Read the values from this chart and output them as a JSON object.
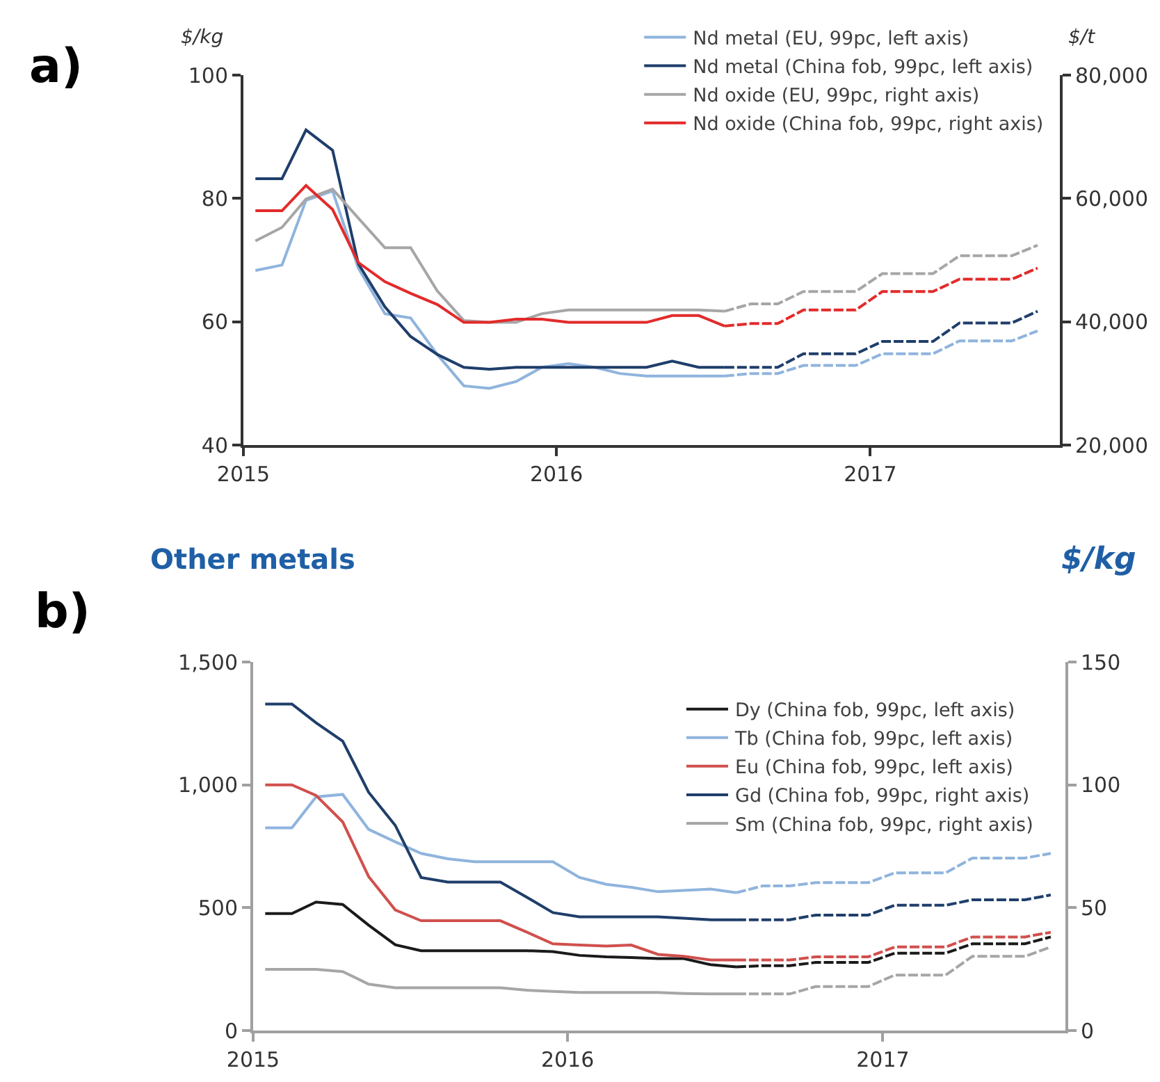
{
  "chart_data": [
    {
      "type": "line",
      "ylabel": "$/kg",
      "y2label": "$/t",
      "annotations": [
        "a)"
      ],
      "xlim": [
        "2015-01-01",
        "2017-08-10"
      ],
      "xticks": [
        {
          "value": "2015-01-01",
          "label": "2015"
        },
        {
          "value": "2016-01-01",
          "label": "2016"
        },
        {
          "value": "2017-01-01",
          "label": "2017"
        }
      ],
      "ylim": [
        40,
        100
      ],
      "yticks": [
        40,
        60,
        80,
        100
      ],
      "y2lim": [
        20000,
        80000
      ],
      "y2ticks": [
        {
          "value": 20000,
          "label": "20,000"
        },
        {
          "value": 40000,
          "label": "40,000"
        },
        {
          "value": 60000,
          "label": "60,000"
        },
        {
          "value": 80000,
          "label": "80,000"
        }
      ],
      "legend": "top right",
      "line_style": "solid",
      "series": [
        {
          "name": "Nd metal (EU, 99pc, left axis)",
          "color": "#8fb4dd",
          "x": [
            "2015-01-15",
            "2015-02-15",
            "2015-03-15",
            "2015-04-15",
            "2015-05-15",
            "2015-06-15",
            "2015-07-15",
            "2015-08-15",
            "2015-09-15",
            "2015-10-15",
            "2015-11-15",
            "2015-12-15",
            "2016-01-15",
            "2016-02-15",
            "2016-03-15",
            "2016-04-15",
            "2016-05-15",
            "2016-06-15",
            "2016-07-15"
          ],
          "values": [
            68.3,
            69.2,
            79.7,
            81.2,
            68.7,
            61.3,
            60.6,
            54.7,
            49.6,
            49.2,
            50.3,
            52.6,
            53.2,
            52.6,
            51.6,
            51.2,
            51.2,
            51.2,
            51.2
          ]
        },
        {
          "name": "Nd metal (China fob, 99pc, left axis)",
          "color": "#1f3e6b",
          "x": [
            "2015-01-15",
            "2015-02-15",
            "2015-03-15",
            "2015-04-15",
            "2015-05-15",
            "2015-06-15",
            "2015-07-15",
            "2015-08-15",
            "2015-09-15",
            "2015-10-15",
            "2015-11-15",
            "2015-12-15",
            "2016-01-15",
            "2016-02-15",
            "2016-03-15",
            "2016-04-15",
            "2016-05-15",
            "2016-06-15",
            "2016-07-15"
          ],
          "values": [
            83.2,
            83.2,
            91.1,
            87.8,
            69.4,
            62.4,
            57.6,
            54.7,
            52.6,
            52.3,
            52.6,
            52.6,
            52.6,
            52.6,
            52.6,
            52.6,
            53.6,
            52.6,
            52.6
          ]
        },
        {
          "name": "Nd oxide (EU, 99pc, right axis)",
          "color": "#a6a6a6",
          "axis": "y2",
          "x": [
            "2015-01-15",
            "2015-02-15",
            "2015-03-15",
            "2015-04-15",
            "2015-05-15",
            "2015-06-15",
            "2015-07-15",
            "2015-08-15",
            "2015-09-15",
            "2015-10-15",
            "2015-11-15",
            "2015-12-15",
            "2016-01-15",
            "2016-02-15",
            "2016-03-15",
            "2016-04-15",
            "2016-05-15",
            "2016-06-15",
            "2016-07-15"
          ],
          "values": [
            53100,
            55300,
            59900,
            61500,
            56800,
            52000,
            52000,
            45000,
            40200,
            39900,
            39900,
            41300,
            41900,
            41900,
            41900,
            41900,
            41900,
            41900,
            41700
          ]
        },
        {
          "name": "Nd oxide (China fob, 99pc, right axis)",
          "color": "#e32a2a",
          "axis": "y2",
          "x": [
            "2015-01-15",
            "2015-02-15",
            "2015-03-15",
            "2015-04-15",
            "2015-05-15",
            "2015-06-15",
            "2015-07-15",
            "2015-08-15",
            "2015-09-15",
            "2015-10-15",
            "2015-11-15",
            "2015-12-15",
            "2016-01-15",
            "2016-02-15",
            "2016-03-15",
            "2016-04-15",
            "2016-05-15",
            "2016-06-15",
            "2016-07-15"
          ],
          "values": [
            58000,
            58000,
            62100,
            58200,
            49600,
            46500,
            44600,
            42800,
            39900,
            39900,
            40400,
            40400,
            39900,
            39900,
            39900,
            39900,
            41000,
            41000,
            39300
          ]
        },
        {
          "color": "#8fb4dd",
          "line_style": "dashed",
          "x": [
            "2016-07-15",
            "2016-08-15",
            "2016-09-15",
            "2016-10-15",
            "2016-11-15",
            "2016-12-15",
            "2017-01-15",
            "2017-02-15",
            "2017-03-15",
            "2017-04-15",
            "2017-05-15",
            "2017-06-15",
            "2017-07-15"
          ],
          "values": [
            51.2,
            51.6,
            51.6,
            52.9,
            52.9,
            52.9,
            54.8,
            54.8,
            54.8,
            56.9,
            56.9,
            56.9,
            58.5
          ]
        },
        {
          "color": "#1f3e6b",
          "line_style": "dashed",
          "x": [
            "2016-07-15",
            "2016-08-15",
            "2016-09-15",
            "2016-10-15",
            "2016-11-15",
            "2016-12-15",
            "2017-01-15",
            "2017-02-15",
            "2017-03-15",
            "2017-04-15",
            "2017-05-15",
            "2017-06-15",
            "2017-07-15"
          ],
          "values": [
            52.6,
            52.6,
            52.6,
            54.8,
            54.8,
            54.8,
            56.8,
            56.8,
            56.8,
            59.8,
            59.8,
            59.8,
            61.7
          ]
        },
        {
          "color": "#a6a6a6",
          "axis": "y2",
          "line_style": "dashed",
          "x": [
            "2016-07-15",
            "2016-08-15",
            "2016-09-15",
            "2016-10-15",
            "2016-11-15",
            "2016-12-15",
            "2017-01-15",
            "2017-02-15",
            "2017-03-15",
            "2017-04-15",
            "2017-05-15",
            "2017-06-15",
            "2017-07-15"
          ],
          "values": [
            41700,
            42900,
            42900,
            44900,
            44900,
            44900,
            47800,
            47800,
            47800,
            50700,
            50700,
            50700,
            52400
          ]
        },
        {
          "color": "#e32a2a",
          "axis": "y2",
          "line_style": "dashed",
          "x": [
            "2016-07-15",
            "2016-08-15",
            "2016-09-15",
            "2016-10-15",
            "2016-11-15",
            "2016-12-15",
            "2017-01-15",
            "2017-02-15",
            "2017-03-15",
            "2017-04-15",
            "2017-05-15",
            "2017-06-15",
            "2017-07-15"
          ],
          "values": [
            39300,
            39700,
            39700,
            41900,
            41900,
            41900,
            44900,
            44900,
            44900,
            46900,
            46900,
            46900,
            48700
          ]
        }
      ]
    },
    {
      "type": "line",
      "title": "Other metals",
      "y2label": "$/kg",
      "annotations": [
        "b)"
      ],
      "xlim": [
        "2015-01-01",
        "2017-08-01"
      ],
      "xticks": [
        {
          "value": "2015-01-01",
          "label": "2015"
        },
        {
          "value": "2016-01-01",
          "label": "2016"
        },
        {
          "value": "2017-01-01",
          "label": "2017"
        }
      ],
      "ylim": [
        0,
        1500
      ],
      "yticks": [
        0,
        500,
        {
          "value": 1000,
          "label": "1,000"
        },
        {
          "value": 1500,
          "label": "1,500"
        }
      ],
      "y2lim": [
        0,
        150
      ],
      "y2ticks": [
        0,
        50,
        100,
        150
      ],
      "legend": "top right",
      "line_style": "solid",
      "series": [
        {
          "name": "Dy (China fob, 99pc, left axis)",
          "color": "#1a1a1a",
          "x": [
            "2015-01-15",
            "2015-02-15",
            "2015-03-15",
            "2015-04-15",
            "2015-05-15",
            "2015-06-15",
            "2015-07-15",
            "2015-08-15",
            "2015-09-15",
            "2015-10-15",
            "2015-11-15",
            "2015-12-15",
            "2016-01-15",
            "2016-02-15",
            "2016-03-15",
            "2016-04-15",
            "2016-05-15",
            "2016-06-15",
            "2016-07-15"
          ],
          "values": [
            476,
            476,
            523,
            513,
            429,
            349,
            325,
            325,
            325,
            325,
            325,
            321,
            306,
            300,
            297,
            293,
            293,
            268,
            259
          ]
        },
        {
          "name": "Tb (China fob, 99pc, left axis)",
          "color": "#8fb4dd",
          "x": [
            "2015-01-15",
            "2015-02-15",
            "2015-03-15",
            "2015-04-15",
            "2015-05-15",
            "2015-06-15",
            "2015-07-15",
            "2015-08-15",
            "2015-09-15",
            "2015-10-15",
            "2015-11-15",
            "2015-12-15",
            "2016-01-15",
            "2016-02-15",
            "2016-03-15",
            "2016-04-15",
            "2016-05-15",
            "2016-06-15",
            "2016-07-15"
          ],
          "values": [
            825,
            825,
            951,
            961,
            819,
            768,
            721,
            699,
            687,
            687,
            687,
            687,
            623,
            595,
            583,
            565,
            570,
            576,
            561
          ]
        },
        {
          "name": "Eu (China fob, 99pc, left axis)",
          "color": "#d0504d",
          "x": [
            "2015-01-15",
            "2015-02-15",
            "2015-03-15",
            "2015-04-15",
            "2015-05-15",
            "2015-06-15",
            "2015-07-15",
            "2015-08-15",
            "2015-09-15",
            "2015-10-15",
            "2015-11-15",
            "2015-12-15",
            "2016-01-15",
            "2016-02-15",
            "2016-03-15",
            "2016-04-15",
            "2016-05-15",
            "2016-06-15",
            "2016-07-15"
          ],
          "values": [
            1000,
            1000,
            957,
            849,
            627,
            491,
            447,
            447,
            447,
            447,
            400,
            353,
            348,
            344,
            348,
            310,
            302,
            287,
            287
          ]
        },
        {
          "name": "Gd (China fob, 99pc, right axis)",
          "color": "#1f3e6b",
          "axis": "y2",
          "x": [
            "2015-01-15",
            "2015-02-15",
            "2015-03-15",
            "2015-04-15",
            "2015-05-15",
            "2015-06-15",
            "2015-07-15",
            "2015-08-15",
            "2015-09-15",
            "2015-10-15",
            "2015-11-15",
            "2015-12-15",
            "2016-01-15",
            "2016-02-15",
            "2016-03-15",
            "2016-04-15",
            "2016-05-15",
            "2016-06-15",
            "2016-07-15"
          ],
          "values": [
            132.9,
            132.9,
            125.3,
            117.8,
            97,
            83.5,
            62.3,
            60.4,
            60.4,
            60.4,
            54.2,
            48,
            46.3,
            46.3,
            46.3,
            46.3,
            45.7,
            45.1,
            45.1
          ]
        },
        {
          "name": "Sm (China fob, 99pc, right axis)",
          "color": "#a6a6a6",
          "axis": "y2",
          "x": [
            "2015-01-15",
            "2015-02-15",
            "2015-03-15",
            "2015-04-15",
            "2015-05-15",
            "2015-06-15",
            "2015-07-15",
            "2015-08-15",
            "2015-09-15",
            "2015-10-15",
            "2015-11-15",
            "2015-12-15",
            "2016-01-15",
            "2016-02-15",
            "2016-03-15",
            "2016-04-15",
            "2016-05-15",
            "2016-06-15",
            "2016-07-15"
          ],
          "values": [
            24.9,
            24.9,
            24.9,
            24,
            18.9,
            17.4,
            17.4,
            17.4,
            17.4,
            17.4,
            16.4,
            15.9,
            15.5,
            15.5,
            15.5,
            15.5,
            15.1,
            14.9,
            14.9
          ]
        },
        {
          "color": "#1a1a1a",
          "line_style": "dashed",
          "x": [
            "2016-07-15",
            "2016-08-15",
            "2016-09-15",
            "2016-10-15",
            "2016-11-15",
            "2016-12-15",
            "2017-01-15",
            "2017-02-15",
            "2017-03-15",
            "2017-04-15",
            "2017-05-15",
            "2017-06-15",
            "2017-07-15"
          ],
          "values": [
            259,
            264,
            264,
            277,
            277,
            277,
            315,
            315,
            315,
            353,
            353,
            353,
            381
          ]
        },
        {
          "color": "#8fb4dd",
          "line_style": "dashed",
          "x": [
            "2016-07-15",
            "2016-08-15",
            "2016-09-15",
            "2016-10-15",
            "2016-11-15",
            "2016-12-15",
            "2017-01-15",
            "2017-02-15",
            "2017-03-15",
            "2017-04-15",
            "2017-05-15",
            "2017-06-15",
            "2017-07-15"
          ],
          "values": [
            561,
            589,
            589,
            602,
            602,
            602,
            642,
            642,
            642,
            702,
            702,
            702,
            721
          ]
        },
        {
          "color": "#d0504d",
          "line_style": "dashed",
          "x": [
            "2016-07-15",
            "2016-08-15",
            "2016-09-15",
            "2016-10-15",
            "2016-11-15",
            "2016-12-15",
            "2017-01-15",
            "2017-02-15",
            "2017-03-15",
            "2017-04-15",
            "2017-05-15",
            "2017-06-15",
            "2017-07-15"
          ],
          "values": [
            287,
            287,
            287,
            300,
            300,
            300,
            340,
            340,
            340,
            381,
            381,
            381,
            400
          ]
        },
        {
          "color": "#1f3e6b",
          "axis": "y2",
          "line_style": "dashed",
          "x": [
            "2016-07-15",
            "2016-08-15",
            "2016-09-15",
            "2016-10-15",
            "2016-11-15",
            "2016-12-15",
            "2017-01-15",
            "2017-02-15",
            "2017-03-15",
            "2017-04-15",
            "2017-05-15",
            "2017-06-15",
            "2017-07-15"
          ],
          "values": [
            45.1,
            45.1,
            45.1,
            47,
            47,
            47,
            51,
            51,
            51,
            53.2,
            53.2,
            53.2,
            55.2
          ]
        },
        {
          "color": "#a6a6a6",
          "axis": "y2",
          "line_style": "dashed",
          "x": [
            "2016-07-15",
            "2016-08-15",
            "2016-09-15",
            "2016-10-15",
            "2016-11-15",
            "2016-12-15",
            "2017-01-15",
            "2017-02-15",
            "2017-03-15",
            "2017-04-15",
            "2017-05-15",
            "2017-06-15",
            "2017-07-15"
          ],
          "values": [
            14.9,
            14.9,
            14.9,
            17.9,
            17.9,
            17.9,
            22.6,
            22.6,
            22.6,
            30.2,
            30.2,
            30.2,
            34
          ]
        }
      ]
    }
  ]
}
